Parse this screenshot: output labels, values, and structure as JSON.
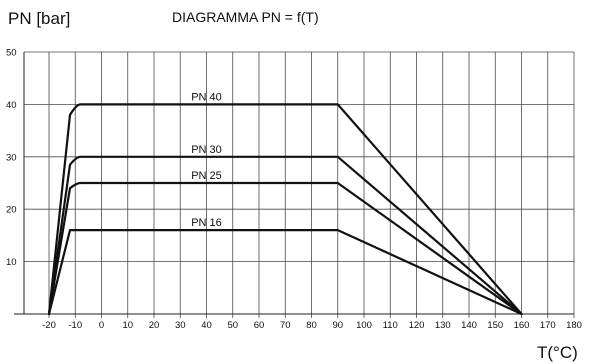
{
  "chart_data": {
    "type": "line",
    "title": "DIAGRAMMA PN = f(T)",
    "ylabel": "PN [bar]",
    "xlabel": "T(°C)",
    "x_ticks": [
      -20,
      -10,
      0,
      10,
      20,
      30,
      40,
      50,
      60,
      70,
      80,
      90,
      100,
      110,
      120,
      130,
      140,
      150,
      160,
      170,
      180
    ],
    "y_ticks": [
      10,
      20,
      30,
      40,
      50
    ],
    "xlim": [
      -35,
      180
    ],
    "ylim": [
      0,
      50
    ],
    "grid": true,
    "series": [
      {
        "name": "PN 40",
        "x": [
          -20,
          -12,
          -8,
          90,
          160
        ],
        "y": [
          0,
          38,
          40,
          40,
          0
        ]
      },
      {
        "name": "PN 30",
        "x": [
          -20,
          -12,
          -8,
          90,
          160
        ],
        "y": [
          0,
          28.5,
          30,
          30,
          0
        ]
      },
      {
        "name": "PN 25",
        "x": [
          -20,
          -12,
          -8,
          90,
          160
        ],
        "y": [
          0,
          24,
          25,
          25,
          0
        ]
      },
      {
        "name": "PN 16",
        "x": [
          -20,
          -12,
          -8,
          90,
          160
        ],
        "y": [
          0,
          16,
          16,
          16,
          0
        ]
      }
    ]
  }
}
